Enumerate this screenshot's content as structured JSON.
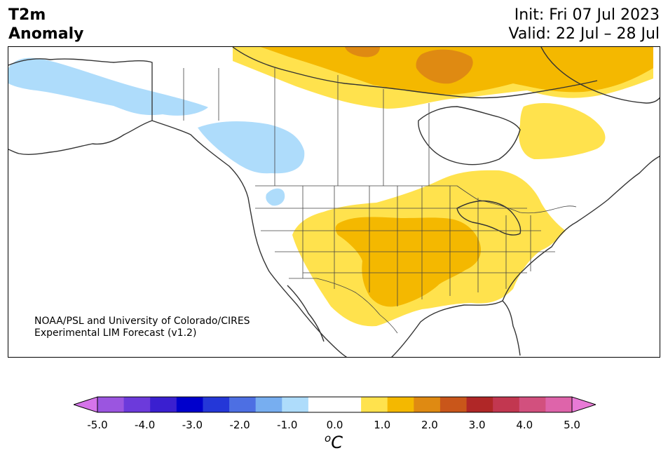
{
  "header": {
    "title_line1": "T2m",
    "title_line2": "Anomaly",
    "init": "Init: Fri 07 Jul 2023",
    "valid": "Valid: 22 Jul – 28 Jul"
  },
  "credit": {
    "line1": "NOAA/PSL and University of Colorado/CIRES",
    "line2": "Experimental LIM Forecast (v1.2)"
  },
  "colorbar": {
    "colors": [
      "#d574ea",
      "#9b55e0",
      "#6c3adb",
      "#3a1fd0",
      "#0000cc",
      "#2437d8",
      "#4d6fe3",
      "#77aef0",
      "#aedcfb",
      "#ffffff",
      "#ffffff",
      "#ffe24d",
      "#f4b800",
      "#df8a12",
      "#c9561a",
      "#b02727",
      "#c23750",
      "#d2507e",
      "#de64aa",
      "#e87ad6"
    ],
    "tick_labels": [
      "-5.0",
      "-4.0",
      "-3.0",
      "-2.0",
      "-1.0",
      "0.0",
      "1.0",
      "2.0",
      "3.0",
      "4.0",
      "5.0"
    ],
    "unit_base": "C",
    "unit_sup": "o"
  },
  "map": {
    "colors": {
      "cold_1": "#aedcfb",
      "warm_1": "#ffe24d",
      "warm_2": "#f4b800",
      "warm_3": "#df8a12",
      "coast": "#333333",
      "border": "#444444"
    }
  }
}
